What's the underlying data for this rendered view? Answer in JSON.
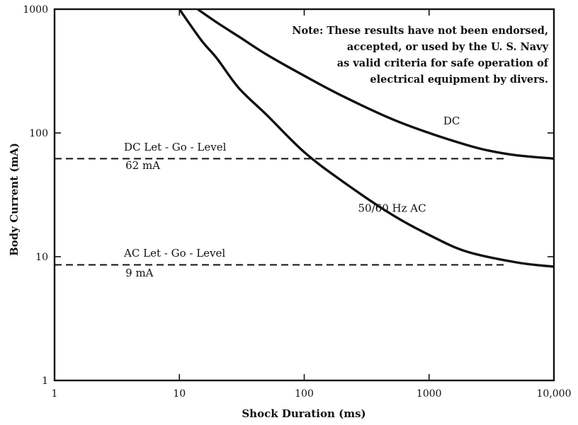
{
  "chart_data": {
    "type": "line",
    "xlabel": "Shock Duration (ms)",
    "ylabel": "Body Current (mA)",
    "xscale": "log",
    "yscale": "log",
    "xlim": [
      1,
      10000
    ],
    "ylim": [
      1,
      1000
    ],
    "grid": false,
    "x_ticks": [
      1,
      10,
      100,
      1000,
      10000
    ],
    "x_tick_labels": [
      "1",
      "10",
      "100",
      "1000",
      "10,000"
    ],
    "y_ticks": [
      1,
      10,
      100,
      1000
    ],
    "y_tick_labels": [
      "1",
      "10",
      "100",
      "1000"
    ],
    "series": [
      {
        "name": "DC",
        "style": "solid",
        "color": "#111111",
        "x": [
          14,
          20,
          30,
          50,
          100,
          200,
          500,
          1000,
          2000,
          3000,
          5000,
          10000
        ],
        "y": [
          1000,
          780,
          600,
          430,
          290,
          200,
          130,
          100,
          80,
          72,
          66,
          62
        ]
      },
      {
        "name": "50/60 Hz AC",
        "style": "solid",
        "color": "#111111",
        "x": [
          10,
          15,
          20,
          30,
          50,
          100,
          200,
          500,
          1000,
          2000,
          5000,
          10000
        ],
        "y": [
          1000,
          560,
          400,
          230,
          140,
          70,
          41,
          22,
          15,
          11,
          9,
          8.3
        ]
      },
      {
        "name": "",
        "style": "dashed",
        "color": "#111111",
        "x": [
          1,
          4000
        ],
        "y": [
          62,
          62
        ]
      },
      {
        "name": "",
        "style": "dashed",
        "color": "#111111",
        "x": [
          1,
          4000
        ],
        "y": [
          8.6,
          8.6
        ]
      }
    ],
    "annotations": [
      {
        "id": "dc-curve",
        "text": "DC",
        "x": 1300,
        "y": 117
      },
      {
        "id": "ac-curve",
        "text": "50/60 Hz AC",
        "x": 270,
        "y": 23
      },
      {
        "id": "dc-let-go",
        "text": "DC Let - Go - Level",
        "x": 3.6,
        "y": 72
      },
      {
        "id": "dc-let-go-value",
        "text": "62 mA",
        "x": 3.7,
        "y": 51
      },
      {
        "id": "ac-let-go",
        "text": "AC Let - Go - Level",
        "x": 3.6,
        "y": 10
      },
      {
        "id": "ac-let-go-value",
        "text": "9 mA",
        "x": 3.7,
        "y": 6.9
      }
    ],
    "note": [
      "Note:  These results have not been endorsed,",
      "accepted, or used by the U. S. Navy",
      "as valid criteria for safe operation of",
      "electrical equipment by divers."
    ]
  }
}
